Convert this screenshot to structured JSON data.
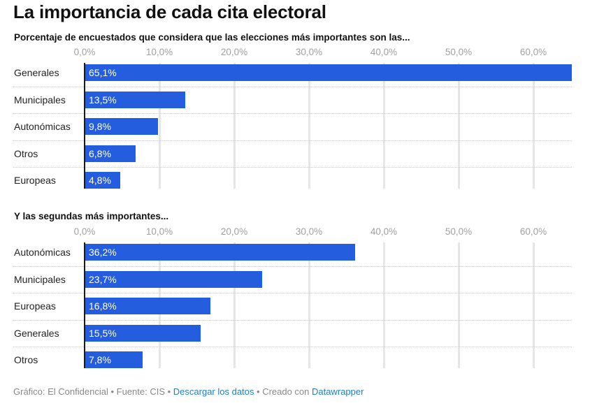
{
  "title": "La importancia de cada cita electoral",
  "footer": {
    "credit": "Gráfico: El Confidencial",
    "sep1": " • ",
    "source": "Fuente: CIS",
    "sep2": " • ",
    "download_link": "Descargar los datos",
    "sep3": " • ",
    "created": "Creado con ",
    "datawrapper_link": "Datawrapper"
  },
  "colors": {
    "bar": "#245ddd",
    "grid": "#e6e6e6",
    "tick": "#a0a0a0",
    "link": "#1d81c4"
  },
  "chart_data": [
    {
      "type": "bar",
      "orientation": "horizontal",
      "title": "Porcentaje de encuestados que considera que las elecciones más importantes son las...",
      "categories": [
        "Generales",
        "Municipales",
        "Autonómicas",
        "Otros",
        "Europeas"
      ],
      "values": [
        65.1,
        13.5,
        9.8,
        6.8,
        4.8
      ],
      "labels": [
        "65,1%",
        "13,5%",
        "9,8%",
        "6,8%",
        "4,8%"
      ],
      "ticks": [
        0,
        10,
        20,
        30,
        40,
        50,
        60
      ],
      "tick_labels": [
        "0,0%",
        "10,0%",
        "20,0%",
        "30,0%",
        "40,0%",
        "50,0%",
        "60,0%"
      ],
      "xlim": [
        0,
        65.1
      ],
      "grid": true
    },
    {
      "type": "bar",
      "orientation": "horizontal",
      "title": "Y las segundas más importantes...",
      "categories": [
        "Autonómicas",
        "Municipales",
        "Europeas",
        "Generales",
        "Otros"
      ],
      "values": [
        36.2,
        23.7,
        16.8,
        15.5,
        7.8
      ],
      "labels": [
        "36,2%",
        "23,7%",
        "16,8%",
        "15,5%",
        "7,8%"
      ],
      "ticks": [
        0,
        10,
        20,
        30,
        40,
        50,
        60
      ],
      "tick_labels": [
        "0,0%",
        "10,0%",
        "20,0%",
        "30,0%",
        "40,0%",
        "50,0%",
        "60,0%"
      ],
      "xlim": [
        0,
        65.1
      ],
      "grid": true
    }
  ]
}
